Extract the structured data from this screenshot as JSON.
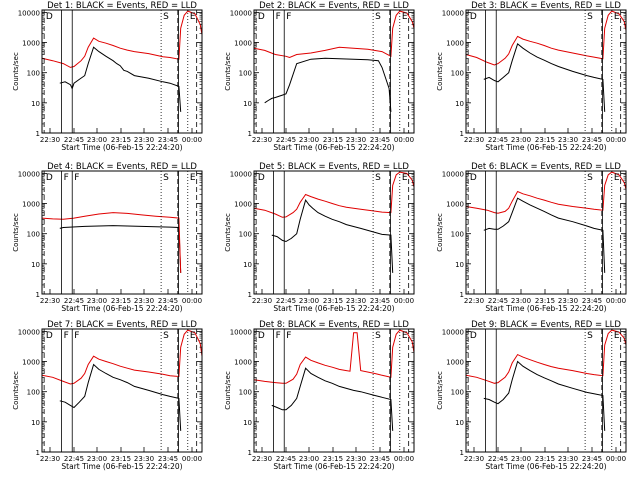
{
  "figure": {
    "colors": {
      "events": "#000000",
      "lld": "#e00000",
      "frame": "#000000",
      "background": "#ffffff"
    },
    "ylabel": "Counts/sec",
    "xlabel": "Start Time (06-Feb-15 22:24:20)",
    "x_ticks": [
      "22:30",
      "22:45",
      "23:00",
      "23:15",
      "23:30",
      "23:45",
      "00:00"
    ],
    "y_ticks": [
      "1",
      "10",
      "100",
      "1000",
      "10000"
    ]
  },
  "chart_data": [
    {
      "type": "line",
      "title": "Det 1: BLACK = Events, RED = LLD",
      "markers": [
        "D",
        "S",
        "E"
      ],
      "xlim_min": [
        0,
        45
      ],
      "ylim": [
        1,
        12000
      ],
      "y_scale": "log",
      "series": [
        {
          "name": "Events",
          "x": [
            5,
            6.5,
            8,
            8.5,
            9,
            10.5,
            12,
            13,
            14.5,
            16,
            18,
            20,
            21,
            22,
            23,
            24,
            26,
            30,
            34,
            36,
            38.5,
            39
          ],
          "y": [
            45,
            50,
            40,
            30,
            45,
            60,
            80,
            200,
            700,
            500,
            350,
            250,
            200,
            170,
            120,
            110,
            80,
            65,
            50,
            45,
            35,
            5
          ]
        },
        {
          "name": "LLD",
          "x": [
            0,
            3,
            6,
            8,
            9,
            11,
            12,
            13,
            14.5,
            16,
            18,
            20,
            22,
            24,
            26,
            30,
            34,
            36,
            38.5,
            39,
            40,
            41,
            43,
            44.5,
            45
          ],
          "y": [
            300,
            250,
            200,
            150,
            160,
            250,
            350,
            700,
            1400,
            1100,
            950,
            800,
            650,
            560,
            500,
            430,
            340,
            320,
            280,
            3000,
            8000,
            11000,
            9000,
            4000,
            1800
          ]
        }
      ]
    },
    {
      "type": "line",
      "title": "Det 2: BLACK = Events, RED = LLD",
      "markers": [
        "D",
        "F",
        "F",
        "S",
        "E"
      ],
      "xlim_min": [
        0,
        45
      ],
      "ylim": [
        1,
        12000
      ],
      "y_scale": "log",
      "series": [
        {
          "name": "Events",
          "x": [
            3,
            4,
            5,
            6,
            8,
            9,
            10,
            12,
            16,
            20,
            24,
            28,
            32,
            35,
            36,
            38,
            38.5
          ],
          "y": [
            10,
            12,
            14,
            15,
            18,
            20,
            40,
            200,
            280,
            300,
            290,
            280,
            270,
            250,
            150,
            30,
            5
          ]
        },
        {
          "name": "LLD",
          "x": [
            0,
            3,
            6,
            9,
            10,
            12,
            16,
            20,
            24,
            28,
            32,
            36,
            38.5,
            39,
            40,
            41,
            43,
            44.5,
            45
          ],
          "y": [
            650,
            550,
            400,
            350,
            320,
            400,
            450,
            550,
            700,
            650,
            600,
            500,
            350,
            3000,
            8000,
            11000,
            9500,
            5000,
            3000
          ]
        }
      ]
    },
    {
      "type": "line",
      "title": "Det 3: BLACK = Events, RED = LLD",
      "markers": [
        "D",
        "S",
        "E"
      ],
      "xlim_min": [
        0,
        45
      ],
      "ylim": [
        1,
        12000
      ],
      "y_scale": "log",
      "series": [
        {
          "name": "Events",
          "x": [
            5,
            6.5,
            8,
            9,
            10.5,
            12,
            13,
            14.5,
            16,
            18,
            20,
            22,
            24,
            26,
            30,
            34,
            36,
            38.5,
            39
          ],
          "y": [
            60,
            70,
            55,
            50,
            70,
            100,
            250,
            900,
            650,
            450,
            330,
            260,
            200,
            160,
            110,
            80,
            70,
            60,
            5
          ]
        },
        {
          "name": "LLD",
          "x": [
            0,
            3,
            6,
            8,
            9,
            11,
            12,
            13,
            14.5,
            16,
            18,
            20,
            22,
            24,
            26,
            30,
            34,
            36,
            38.5,
            39,
            40,
            41,
            43,
            44.5,
            45
          ],
          "y": [
            400,
            320,
            220,
            180,
            200,
            300,
            420,
            800,
            1600,
            1300,
            1100,
            950,
            800,
            650,
            560,
            450,
            360,
            330,
            290,
            3000,
            8000,
            11000,
            9000,
            5000,
            2500
          ]
        }
      ]
    },
    {
      "type": "line",
      "title": "Det 4: BLACK = Events, RED = LLD",
      "markers": [
        "D",
        "F",
        "F",
        "S",
        "E"
      ],
      "xlim_min": [
        0,
        45
      ],
      "ylim": [
        1,
        12000
      ],
      "y_scale": "log",
      "series": [
        {
          "name": "Events",
          "x": [
            5,
            6,
            8,
            10,
            12,
            16,
            20,
            24,
            28,
            32,
            36,
            38.5,
            39
          ],
          "y": [
            150,
            160,
            165,
            170,
            175,
            180,
            185,
            180,
            175,
            170,
            165,
            160,
            5
          ]
        },
        {
          "name": "LLD",
          "x": [
            0,
            3,
            6,
            9,
            12,
            16,
            20,
            24,
            28,
            32,
            36,
            38.5,
            39
          ],
          "y": [
            330,
            310,
            300,
            330,
            380,
            450,
            500,
            470,
            420,
            380,
            350,
            330,
            5
          ]
        }
      ]
    },
    {
      "type": "line",
      "title": "Det 5: BLACK = Events, RED = LLD",
      "markers": [
        "D",
        "S",
        "E"
      ],
      "xlim_min": [
        0,
        45
      ],
      "ylim": [
        1,
        12000
      ],
      "y_scale": "log",
      "series": [
        {
          "name": "Events",
          "x": [
            5,
            6.5,
            8,
            9,
            10.5,
            12,
            13,
            14.5,
            15.5,
            16.5,
            18,
            20,
            22,
            24,
            26,
            30,
            34,
            36,
            38.5,
            39
          ],
          "y": [
            90,
            80,
            60,
            55,
            70,
            100,
            300,
            1300,
            900,
            700,
            500,
            380,
            300,
            250,
            200,
            150,
            110,
            95,
            90,
            5
          ]
        },
        {
          "name": "LLD",
          "x": [
            0,
            3,
            6,
            8,
            9,
            11,
            12,
            13,
            14.5,
            16,
            18,
            20,
            22,
            24,
            26,
            30,
            34,
            36,
            38.5,
            39,
            40,
            41,
            43,
            44.5,
            45
          ],
          "y": [
            700,
            600,
            450,
            350,
            360,
            500,
            650,
            1100,
            2000,
            1700,
            1400,
            1200,
            1000,
            850,
            750,
            650,
            560,
            520,
            500,
            4000,
            9000,
            11000,
            10000,
            6000,
            3500
          ]
        }
      ]
    },
    {
      "type": "line",
      "title": "Det 6: BLACK = Events, RED = LLD",
      "markers": [
        "D",
        "S",
        "E"
      ],
      "xlim_min": [
        0,
        45
      ],
      "ylim": [
        1,
        12000
      ],
      "y_scale": "log",
      "series": [
        {
          "name": "Events",
          "x": [
            5,
            6.5,
            8,
            9,
            10.5,
            12,
            13,
            14.5,
            16,
            18,
            20,
            22,
            24,
            26,
            30,
            34,
            36,
            38.5,
            39
          ],
          "y": [
            130,
            150,
            140,
            140,
            180,
            250,
            500,
            1500,
            1200,
            900,
            700,
            550,
            420,
            330,
            250,
            180,
            150,
            130,
            5
          ]
        },
        {
          "name": "LLD",
          "x": [
            0,
            3,
            6,
            8,
            9,
            11,
            12,
            13,
            14.5,
            16,
            18,
            20,
            22,
            24,
            26,
            30,
            34,
            36,
            38.5,
            39,
            40,
            41,
            43,
            44.5,
            45
          ],
          "y": [
            800,
            700,
            600,
            500,
            480,
            550,
            700,
            1200,
            2500,
            2100,
            1800,
            1500,
            1300,
            1100,
            950,
            800,
            700,
            650,
            600,
            4000,
            9000,
            11000,
            9000,
            5000,
            3000
          ]
        }
      ]
    },
    {
      "type": "line",
      "title": "Det 7: BLACK = Events, RED = LLD",
      "markers": [
        "D",
        "F",
        "F",
        "S",
        "E"
      ],
      "xlim_min": [
        0,
        45
      ],
      "ylim": [
        1,
        12000
      ],
      "y_scale": "log",
      "series": [
        {
          "name": "Events",
          "x": [
            5,
            6.5,
            8,
            9,
            10.5,
            12,
            13,
            14.5,
            16,
            18,
            20,
            22,
            24,
            26,
            30,
            34,
            36,
            38.5,
            39
          ],
          "y": [
            50,
            45,
            35,
            30,
            45,
            70,
            200,
            800,
            550,
            400,
            300,
            250,
            200,
            150,
            110,
            80,
            70,
            60,
            5
          ]
        },
        {
          "name": "LLD",
          "x": [
            0,
            3,
            6,
            8,
            9,
            11,
            12,
            13,
            14.5,
            16,
            18,
            20,
            22,
            24,
            26,
            30,
            34,
            36,
            38.5,
            39,
            40,
            41,
            43,
            44.5,
            45
          ],
          "y": [
            350,
            300,
            220,
            180,
            190,
            280,
            400,
            800,
            1500,
            1200,
            1000,
            850,
            700,
            600,
            520,
            450,
            380,
            340,
            320,
            3000,
            8000,
            11000,
            9000,
            4000,
            1500
          ]
        }
      ]
    },
    {
      "type": "line",
      "title": "Det 8: BLACK = Events, RED = LLD",
      "markers": [
        "D",
        "F",
        "F",
        "S",
        "E"
      ],
      "xlim_min": [
        0,
        45
      ],
      "ylim": [
        1,
        12000
      ],
      "y_scale": "log",
      "series": [
        {
          "name": "Events",
          "x": [
            5,
            6.5,
            8,
            9,
            10.5,
            12,
            13,
            14.5,
            16,
            18,
            20,
            22,
            24,
            28,
            30,
            34,
            36,
            38.5,
            39
          ],
          "y": [
            35,
            30,
            25,
            25,
            35,
            60,
            150,
            600,
            400,
            300,
            230,
            190,
            150,
            110,
            100,
            75,
            65,
            55,
            5
          ]
        },
        {
          "name": "LLD",
          "x": [
            0,
            3,
            6,
            8,
            9,
            11,
            12,
            13,
            14.5,
            16,
            18,
            20,
            22,
            24,
            26,
            27,
            28,
            29,
            30,
            34,
            36,
            38.5,
            39,
            40,
            41,
            43,
            44.5,
            45
          ],
          "y": [
            250,
            220,
            200,
            190,
            190,
            260,
            380,
            800,
            1400,
            1100,
            900,
            750,
            650,
            550,
            500,
            480,
            9000,
            9000,
            500,
            400,
            350,
            300,
            3000,
            8000,
            11000,
            9000,
            4500,
            2000
          ]
        }
      ]
    },
    {
      "type": "line",
      "title": "Det 9: BLACK = Events, RED = LLD",
      "markers": [
        "D",
        "S",
        "E"
      ],
      "xlim_min": [
        0,
        45
      ],
      "ylim": [
        1,
        12000
      ],
      "y_scale": "log",
      "series": [
        {
          "name": "Events",
          "x": [
            5,
            6.5,
            8,
            9,
            10.5,
            12,
            13,
            14.5,
            16,
            18,
            20,
            22,
            24,
            26,
            30,
            34,
            36,
            38.5,
            39
          ],
          "y": [
            60,
            55,
            45,
            40,
            55,
            90,
            250,
            1000,
            700,
            500,
            370,
            290,
            230,
            180,
            130,
            95,
            85,
            75,
            5
          ]
        },
        {
          "name": "LLD",
          "x": [
            0,
            3,
            6,
            8,
            9,
            11,
            12,
            13,
            14.5,
            16,
            18,
            20,
            22,
            24,
            26,
            30,
            34,
            36,
            38.5,
            39,
            40,
            41,
            43,
            44.5,
            45
          ],
          "y": [
            350,
            300,
            230,
            190,
            200,
            300,
            450,
            900,
            1700,
            1400,
            1150,
            950,
            800,
            680,
            600,
            500,
            400,
            370,
            340,
            3500,
            8500,
            11000,
            9500,
            6000,
            3500
          ]
        }
      ]
    }
  ]
}
